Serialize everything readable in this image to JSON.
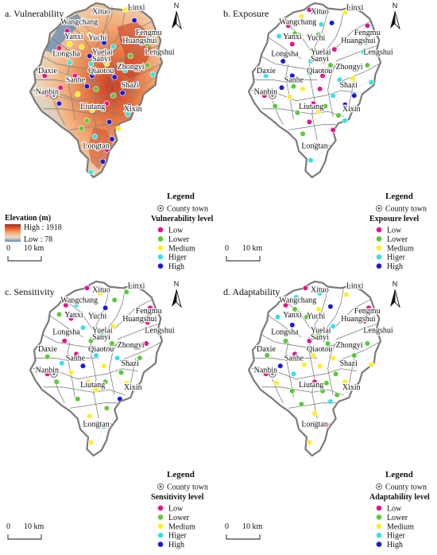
{
  "level_colors": [
    "#e6158c",
    "#5cc93a",
    "#ffee22",
    "#37e1e3",
    "#1a1ad6"
  ],
  "level_labels": [
    "Low",
    "Lower",
    "Medium",
    "Higer",
    "High"
  ],
  "legend": {
    "title": "Legend",
    "county_town": "County town"
  },
  "north_label": "N",
  "scale": {
    "zero": "0",
    "ten": "10 km"
  },
  "elevation": {
    "title": "Elevation (m)",
    "high": "High : 1918",
    "low": "Low : 78"
  },
  "towns": [
    {
      "name": "Xituo"
    },
    {
      "name": "Linxi"
    },
    {
      "name": "Wangchang"
    },
    {
      "name": "Yanxi"
    },
    {
      "name": "Yuchi"
    },
    {
      "name": "Fengmu"
    },
    {
      "name": "Huangshui"
    },
    {
      "name": "Longsha"
    },
    {
      "name": "Yuelai"
    },
    {
      "name": "Lengshui"
    },
    {
      "name": "Sanyi"
    },
    {
      "name": "Qiaotou"
    },
    {
      "name": "Zhongyi"
    },
    {
      "name": "Daxie"
    },
    {
      "name": "Sanhe"
    },
    {
      "name": "Shazi"
    },
    {
      "name": "Nanbin"
    },
    {
      "name": "Liutang"
    },
    {
      "name": "Xixin"
    },
    {
      "name": "Longtan"
    }
  ],
  "panels": [
    {
      "id": "vulnerability",
      "title": "a. Vulnerability",
      "legend_subtitle": "Vulnerability level",
      "points": [
        {
          "u": 0.49,
          "v": 0.06,
          "c": 0
        },
        {
          "u": 0.4,
          "v": 0.13,
          "c": 3
        },
        {
          "u": 0.72,
          "v": 0.05,
          "c": 2
        },
        {
          "u": 0.79,
          "v": 0.13,
          "c": 4
        },
        {
          "u": 0.28,
          "v": 0.21,
          "c": 0
        },
        {
          "u": 0.34,
          "v": 0.26,
          "c": 1
        },
        {
          "u": 0.45,
          "v": 0.24,
          "c": 2
        },
        {
          "u": 0.3,
          "v": 0.31,
          "c": 2
        },
        {
          "u": 0.56,
          "v": 0.3,
          "c": 4
        },
        {
          "u": 0.22,
          "v": 0.34,
          "c": 0
        },
        {
          "u": 0.39,
          "v": 0.33,
          "c": 2
        },
        {
          "u": 0.63,
          "v": 0.33,
          "c": 3
        },
        {
          "u": 0.89,
          "v": 0.31,
          "c": 1
        },
        {
          "u": 0.45,
          "v": 0.4,
          "c": 4
        },
        {
          "u": 0.76,
          "v": 0.4,
          "c": 1
        },
        {
          "u": 0.3,
          "v": 0.45,
          "c": 3
        },
        {
          "u": 0.46,
          "v": 0.46,
          "c": 3
        },
        {
          "u": 0.58,
          "v": 0.46,
          "c": 2
        },
        {
          "u": 0.89,
          "v": 0.47,
          "c": 1
        },
        {
          "u": 0.72,
          "v": 0.51,
          "c": 3
        },
        {
          "u": 0.93,
          "v": 0.54,
          "c": 3
        },
        {
          "u": 0.11,
          "v": 0.55,
          "c": 0
        },
        {
          "u": 0.34,
          "v": 0.55,
          "c": 0
        },
        {
          "u": 0.47,
          "v": 0.55,
          "c": 4
        },
        {
          "u": 0.64,
          "v": 0.56,
          "c": 4
        },
        {
          "u": 0.8,
          "v": 0.61,
          "c": 4
        },
        {
          "u": 0.23,
          "v": 0.64,
          "c": 0
        },
        {
          "u": 0.43,
          "v": 0.63,
          "c": 4
        },
        {
          "u": 0.5,
          "v": 0.65,
          "c": 1
        },
        {
          "u": 0.13,
          "v": 0.69,
          "c": 0
        },
        {
          "u": 0.36,
          "v": 0.69,
          "c": 2
        },
        {
          "u": 0.63,
          "v": 0.7,
          "c": 1
        },
        {
          "u": 0.7,
          "v": 0.68,
          "c": 4
        },
        {
          "u": 0.22,
          "v": 0.76,
          "c": 4
        },
        {
          "u": 0.58,
          "v": 0.76,
          "c": 0
        },
        {
          "u": 0.75,
          "v": 0.78,
          "c": 4
        },
        {
          "u": 0.47,
          "v": 0.81,
          "c": 2
        },
        {
          "u": 0.74,
          "v": 0.84,
          "c": 3
        },
        {
          "u": 0.43,
          "v": 0.89,
          "c": 1
        },
        {
          "u": 0.6,
          "v": 0.9,
          "c": 4
        },
        {
          "u": 0.39,
          "v": 0.95,
          "c": 1
        },
        {
          "u": 0.67,
          "v": 0.95,
          "c": 2
        },
        {
          "u": 0.49,
          "v": 1.01,
          "c": 3
        },
        {
          "u": 0.62,
          "v": 1.03,
          "c": 4
        },
        {
          "u": 0.58,
          "v": 1.11,
          "c": 0
        },
        {
          "u": 0.55,
          "v": 1.2,
          "c": 4
        },
        {
          "u": 0.46,
          "v": 1.28,
          "c": 3
        }
      ]
    },
    {
      "id": "exposure",
      "title": "b. Exposure",
      "legend_subtitle": "Exposure level",
      "points": [
        {
          "u": 0.46,
          "v": 0.05,
          "c": 0
        },
        {
          "u": 0.52,
          "v": 0.06,
          "c": 1
        },
        {
          "u": 0.4,
          "v": 0.1,
          "c": 2
        },
        {
          "u": 0.73,
          "v": 0.07,
          "c": 2
        },
        {
          "u": 0.3,
          "v": 0.17,
          "c": 0
        },
        {
          "u": 0.55,
          "v": 0.16,
          "c": 3
        },
        {
          "u": 0.63,
          "v": 0.15,
          "c": 4
        },
        {
          "u": 0.9,
          "v": 0.17,
          "c": 0
        },
        {
          "u": 0.23,
          "v": 0.25,
          "c": 3
        },
        {
          "u": 0.35,
          "v": 0.23,
          "c": 1
        },
        {
          "u": 0.53,
          "v": 0.24,
          "c": 1
        },
        {
          "u": 0.78,
          "v": 0.28,
          "c": 1
        },
        {
          "u": 0.33,
          "v": 0.31,
          "c": 0
        },
        {
          "u": 0.89,
          "v": 0.3,
          "c": 3
        },
        {
          "u": 0.65,
          "v": 0.35,
          "c": 0
        },
        {
          "u": 0.87,
          "v": 0.37,
          "c": 3
        },
        {
          "u": 0.49,
          "v": 0.38,
          "c": 2
        },
        {
          "u": 0.26,
          "v": 0.44,
          "c": 4
        },
        {
          "u": 0.47,
          "v": 0.44,
          "c": 3
        },
        {
          "u": 0.62,
          "v": 0.47,
          "c": 1
        },
        {
          "u": 0.9,
          "v": 0.47,
          "c": 1
        },
        {
          "u": 0.46,
          "v": 0.53,
          "c": 3
        },
        {
          "u": 0.13,
          "v": 0.55,
          "c": 3
        },
        {
          "u": 0.33,
          "v": 0.55,
          "c": 4
        },
        {
          "u": 0.56,
          "v": 0.55,
          "c": 0
        },
        {
          "u": 0.69,
          "v": 0.58,
          "c": 3
        },
        {
          "u": 0.79,
          "v": 0.57,
          "c": 2
        },
        {
          "u": 0.93,
          "v": 0.6,
          "c": 3
        },
        {
          "u": 0.25,
          "v": 0.64,
          "c": 4
        },
        {
          "u": 0.34,
          "v": 0.63,
          "c": 1
        },
        {
          "u": 0.41,
          "v": 0.65,
          "c": 2
        },
        {
          "u": 0.54,
          "v": 0.65,
          "c": 0
        },
        {
          "u": 0.12,
          "v": 0.7,
          "c": 0
        },
        {
          "u": 0.31,
          "v": 0.71,
          "c": 2
        },
        {
          "u": 0.64,
          "v": 0.7,
          "c": 3
        },
        {
          "u": 0.8,
          "v": 0.7,
          "c": 4
        },
        {
          "u": 0.2,
          "v": 0.78,
          "c": 1
        },
        {
          "u": 0.49,
          "v": 0.76,
          "c": 0
        },
        {
          "u": 0.58,
          "v": 0.78,
          "c": 1
        },
        {
          "u": 0.73,
          "v": 0.77,
          "c": 4
        },
        {
          "u": 0.37,
          "v": 0.83,
          "c": 1
        },
        {
          "u": 0.53,
          "v": 0.82,
          "c": 2
        },
        {
          "u": 0.68,
          "v": 0.85,
          "c": 1
        },
        {
          "u": 0.46,
          "v": 0.9,
          "c": 0
        },
        {
          "u": 0.64,
          "v": 0.96,
          "c": 0
        },
        {
          "u": 0.73,
          "v": 0.89,
          "c": 3
        },
        {
          "u": 0.41,
          "v": 0.99,
          "c": 1
        },
        {
          "u": 0.56,
          "v": 1.08,
          "c": 4
        },
        {
          "u": 0.47,
          "v": 1.19,
          "c": 3
        }
      ]
    },
    {
      "id": "sensitivity",
      "title": "c. Sensitivity",
      "legend_subtitle": "Sensitivity level",
      "points": [
        {
          "u": 0.43,
          "v": 0.05,
          "c": 0
        },
        {
          "u": 0.53,
          "v": 0.09,
          "c": 2
        },
        {
          "u": 0.73,
          "v": 0.08,
          "c": 1
        },
        {
          "u": 0.64,
          "v": 0.14,
          "c": 1
        },
        {
          "u": 0.27,
          "v": 0.18,
          "c": 0
        },
        {
          "u": 0.35,
          "v": 0.18,
          "c": 3
        },
        {
          "u": 0.57,
          "v": 0.2,
          "c": 4
        },
        {
          "u": 0.91,
          "v": 0.2,
          "c": 0
        },
        {
          "u": 0.22,
          "v": 0.25,
          "c": 1
        },
        {
          "u": 0.31,
          "v": 0.28,
          "c": 0
        },
        {
          "u": 0.48,
          "v": 0.25,
          "c": 1
        },
        {
          "u": 0.76,
          "v": 0.28,
          "c": 2
        },
        {
          "u": 0.89,
          "v": 0.31,
          "c": 0
        },
        {
          "u": 0.4,
          "v": 0.35,
          "c": 3
        },
        {
          "u": 0.63,
          "v": 0.34,
          "c": 2
        },
        {
          "u": 0.54,
          "v": 0.4,
          "c": 3
        },
        {
          "u": 0.26,
          "v": 0.45,
          "c": 0
        },
        {
          "u": 0.46,
          "v": 0.45,
          "c": 1
        },
        {
          "u": 0.62,
          "v": 0.47,
          "c": 1
        },
        {
          "u": 0.88,
          "v": 0.47,
          "c": 0
        },
        {
          "u": 0.13,
          "v": 0.57,
          "c": 1
        },
        {
          "u": 0.35,
          "v": 0.55,
          "c": 0
        },
        {
          "u": 0.5,
          "v": 0.56,
          "c": 3
        },
        {
          "u": 0.66,
          "v": 0.58,
          "c": 3
        },
        {
          "u": 0.83,
          "v": 0.58,
          "c": 1
        },
        {
          "u": 0.24,
          "v": 0.62,
          "c": 3
        },
        {
          "u": 0.4,
          "v": 0.64,
          "c": 4
        },
        {
          "u": 0.56,
          "v": 0.64,
          "c": 2
        },
        {
          "u": 0.13,
          "v": 0.7,
          "c": 0
        },
        {
          "u": 0.31,
          "v": 0.69,
          "c": 2
        },
        {
          "u": 0.69,
          "v": 0.69,
          "c": 1
        },
        {
          "u": 0.2,
          "v": 0.76,
          "c": 1
        },
        {
          "u": 0.44,
          "v": 0.76,
          "c": 2
        },
        {
          "u": 0.57,
          "v": 0.76,
          "c": 1
        },
        {
          "u": 0.73,
          "v": 0.77,
          "c": 2
        },
        {
          "u": 0.5,
          "v": 0.82,
          "c": 2
        },
        {
          "u": 0.36,
          "v": 0.89,
          "c": 1
        },
        {
          "u": 0.68,
          "v": 0.89,
          "c": 4
        },
        {
          "u": 0.58,
          "v": 0.96,
          "c": 1
        },
        {
          "u": 0.45,
          "v": 1.02,
          "c": 2
        },
        {
          "u": 0.56,
          "v": 1.1,
          "c": 3
        },
        {
          "u": 0.46,
          "v": 1.22,
          "c": 2
        }
      ]
    },
    {
      "id": "adaptability",
      "title": "d. Adaptability",
      "legend_subtitle": "Adaptability level",
      "points": [
        {
          "u": 0.43,
          "v": 0.05,
          "c": 0
        },
        {
          "u": 0.54,
          "v": 0.09,
          "c": 3
        },
        {
          "u": 0.74,
          "v": 0.1,
          "c": 2
        },
        {
          "u": 0.36,
          "v": 0.12,
          "c": 3
        },
        {
          "u": 0.28,
          "v": 0.18,
          "c": 0
        },
        {
          "u": 0.35,
          "v": 0.21,
          "c": 1
        },
        {
          "u": 0.53,
          "v": 0.21,
          "c": 2
        },
        {
          "u": 0.62,
          "v": 0.19,
          "c": 4
        },
        {
          "u": 0.91,
          "v": 0.2,
          "c": 0
        },
        {
          "u": 0.22,
          "v": 0.27,
          "c": 3
        },
        {
          "u": 0.44,
          "v": 0.27,
          "c": 1
        },
        {
          "u": 0.75,
          "v": 0.28,
          "c": 1
        },
        {
          "u": 0.33,
          "v": 0.33,
          "c": 4
        },
        {
          "u": 0.64,
          "v": 0.34,
          "c": 3
        },
        {
          "u": 0.88,
          "v": 0.3,
          "c": 0
        },
        {
          "u": 0.53,
          "v": 0.4,
          "c": 1
        },
        {
          "u": 0.28,
          "v": 0.45,
          "c": 1
        },
        {
          "u": 0.46,
          "v": 0.45,
          "c": 0
        },
        {
          "u": 0.6,
          "v": 0.47,
          "c": 1
        },
        {
          "u": 0.9,
          "v": 0.47,
          "c": 1
        },
        {
          "u": 0.14,
          "v": 0.56,
          "c": 1
        },
        {
          "u": 0.35,
          "v": 0.55,
          "c": 0
        },
        {
          "u": 0.49,
          "v": 0.56,
          "c": 2
        },
        {
          "u": 0.64,
          "v": 0.58,
          "c": 2
        },
        {
          "u": 0.8,
          "v": 0.56,
          "c": 1
        },
        {
          "u": 0.93,
          "v": 0.63,
          "c": 2
        },
        {
          "u": 0.24,
          "v": 0.64,
          "c": 4
        },
        {
          "u": 0.42,
          "v": 0.63,
          "c": 2
        },
        {
          "u": 0.54,
          "v": 0.64,
          "c": 2
        },
        {
          "u": 0.13,
          "v": 0.7,
          "c": 0
        },
        {
          "u": 0.34,
          "v": 0.7,
          "c": 3
        },
        {
          "u": 0.66,
          "v": 0.7,
          "c": 1
        },
        {
          "u": 0.21,
          "v": 0.77,
          "c": 2
        },
        {
          "u": 0.5,
          "v": 0.76,
          "c": 0
        },
        {
          "u": 0.59,
          "v": 0.77,
          "c": 1
        },
        {
          "u": 0.73,
          "v": 0.76,
          "c": 2
        },
        {
          "u": 0.33,
          "v": 0.83,
          "c": 1
        },
        {
          "u": 0.56,
          "v": 0.83,
          "c": 1
        },
        {
          "u": 0.67,
          "v": 0.86,
          "c": 1
        },
        {
          "u": 0.4,
          "v": 0.93,
          "c": 1
        },
        {
          "u": 0.62,
          "v": 0.91,
          "c": 3
        },
        {
          "u": 0.5,
          "v": 1.0,
          "c": 2
        },
        {
          "u": 0.59,
          "v": 1.09,
          "c": 0
        },
        {
          "u": 0.46,
          "v": 1.22,
          "c": 2
        }
      ]
    }
  ]
}
